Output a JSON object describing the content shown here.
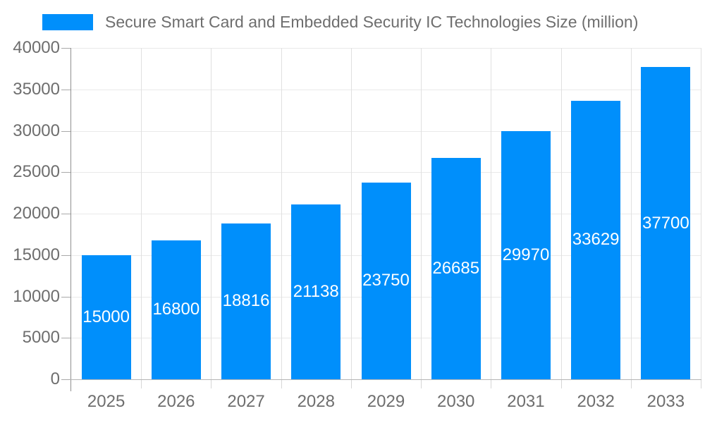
{
  "chart_data": {
    "type": "bar",
    "title": "Secure Smart Card and Embedded Security IC Technologies Size (million)",
    "categories": [
      "2025",
      "2026",
      "2027",
      "2028",
      "2029",
      "2030",
      "2031",
      "2032",
      "2033"
    ],
    "series": [
      {
        "name": "Secure Smart Card and Embedded Security IC Technologies Size (million)",
        "values": [
          15000,
          16800,
          18816,
          21138,
          23750,
          26685,
          29970,
          33629,
          37700
        ]
      }
    ],
    "y_ticks": [
      0,
      5000,
      10000,
      15000,
      20000,
      25000,
      30000,
      35000,
      40000
    ],
    "ylim": [
      0,
      40000
    ],
    "xlabel": "",
    "ylabel": "",
    "grid": true,
    "data_labels": "inside-center",
    "legend_position": "top-left",
    "colors": {
      "bar": "#008ffb",
      "data_label_text": "#ffffff",
      "title_text": "#6e6e6e",
      "axis_text": "#6e6e6e",
      "grid_horizontal": "#e9e9e9",
      "grid_vertical": "#e0e0e0",
      "y_axis_line": "#8f8f8f",
      "x_axis_line": "#b5b5b5",
      "y_tick": "#a9a9a9",
      "category_tick": "#d6d6d6",
      "background": "#ffffff"
    }
  }
}
